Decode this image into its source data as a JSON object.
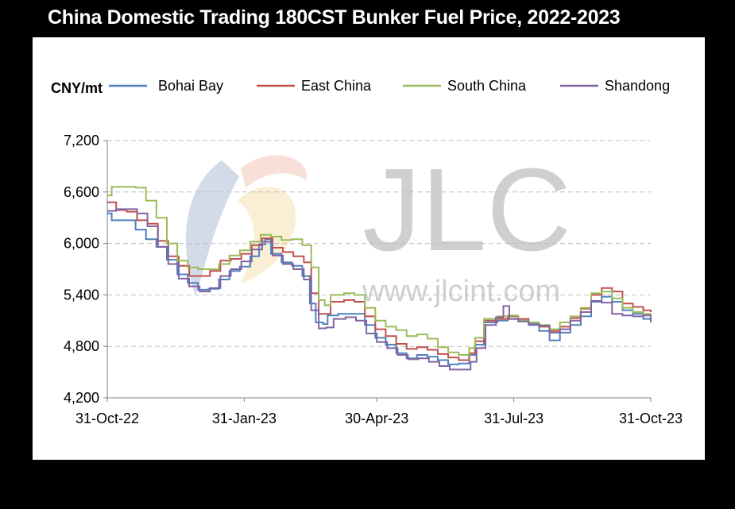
{
  "title": "China Domestic Trading 180CST Bunker Fuel Price, 2022-2023",
  "watermark": {
    "logo_text": "JLC",
    "url_text": "www.jlcint.com",
    "color": "#c8c8c8"
  },
  "chart_data": {
    "type": "line",
    "unit_label": "CNY/mt",
    "x_ticks": [
      "31-Oct-22",
      "31-Jan-23",
      "30-Apr-23",
      "31-Jul-23",
      "31-Oct-23"
    ],
    "x_start": "2022-10-31",
    "x_end": "2023-10-31",
    "y_ticks": [
      "4,200",
      "4,800",
      "5,400",
      "6,000",
      "6,600",
      "7,200"
    ],
    "ylim": [
      4200,
      7200
    ],
    "grid": "horizontal dashed",
    "legend_position": "top",
    "series": [
      {
        "name": "Bohai Bay",
        "color": "#4f81bd",
        "points": [
          [
            "2022-10-31",
            6350
          ],
          [
            "2022-11-03",
            6270
          ],
          [
            "2022-11-12",
            6270
          ],
          [
            "2022-11-19",
            6160
          ],
          [
            "2022-11-26",
            6050
          ],
          [
            "2022-12-03",
            5960
          ],
          [
            "2022-12-10",
            5810
          ],
          [
            "2022-12-17",
            5640
          ],
          [
            "2022-12-24",
            5540
          ],
          [
            "2022-12-31",
            5460
          ],
          [
            "2023-01-07",
            5470
          ],
          [
            "2023-01-14",
            5580
          ],
          [
            "2023-01-21",
            5680
          ],
          [
            "2023-01-28",
            5730
          ],
          [
            "2023-02-04",
            5850
          ],
          [
            "2023-02-10",
            5990
          ],
          [
            "2023-02-14",
            6050
          ],
          [
            "2023-02-18",
            5880
          ],
          [
            "2023-02-25",
            5780
          ],
          [
            "2023-03-04",
            5740
          ],
          [
            "2023-03-11",
            5620
          ],
          [
            "2023-03-16",
            5300
          ],
          [
            "2023-03-20",
            5080
          ],
          [
            "2023-03-25",
            5060
          ],
          [
            "2023-03-28",
            5160
          ],
          [
            "2023-04-04",
            5180
          ],
          [
            "2023-04-15",
            5180
          ],
          [
            "2023-04-22",
            5050
          ],
          [
            "2023-04-29",
            4900
          ],
          [
            "2023-05-06",
            4820
          ],
          [
            "2023-05-13",
            4720
          ],
          [
            "2023-05-20",
            4660
          ],
          [
            "2023-05-27",
            4700
          ],
          [
            "2023-06-03",
            4680
          ],
          [
            "2023-06-10",
            4640
          ],
          [
            "2023-06-17",
            4590
          ],
          [
            "2023-06-24",
            4600
          ],
          [
            "2023-07-01",
            4700
          ],
          [
            "2023-07-05",
            4820
          ],
          [
            "2023-07-11",
            5080
          ],
          [
            "2023-07-20",
            5100
          ],
          [
            "2023-07-27",
            5120
          ],
          [
            "2023-08-03",
            5100
          ],
          [
            "2023-08-10",
            5050
          ],
          [
            "2023-08-17",
            4980
          ],
          [
            "2023-08-24",
            4870
          ],
          [
            "2023-08-31",
            4960
          ],
          [
            "2023-09-07",
            5050
          ],
          [
            "2023-09-14",
            5150
          ],
          [
            "2023-09-21",
            5320
          ],
          [
            "2023-09-28",
            5380
          ],
          [
            "2023-10-05",
            5320
          ],
          [
            "2023-10-12",
            5220
          ],
          [
            "2023-10-19",
            5180
          ],
          [
            "2023-10-26",
            5120
          ],
          [
            "2023-10-31",
            5080
          ]
        ]
      },
      {
        "name": "East China",
        "color": "#c0504d",
        "points": [
          [
            "2022-10-31",
            6480
          ],
          [
            "2022-11-06",
            6390
          ],
          [
            "2022-11-13",
            6370
          ],
          [
            "2022-11-20",
            6270
          ],
          [
            "2022-11-27",
            6230
          ],
          [
            "2022-12-04",
            6030
          ],
          [
            "2022-12-11",
            5850
          ],
          [
            "2022-12-18",
            5740
          ],
          [
            "2022-12-25",
            5620
          ],
          [
            "2023-01-01",
            5620
          ],
          [
            "2023-01-08",
            5680
          ],
          [
            "2023-01-15",
            5800
          ],
          [
            "2023-01-22",
            5820
          ],
          [
            "2023-01-29",
            5880
          ],
          [
            "2023-02-05",
            5980
          ],
          [
            "2023-02-12",
            6060
          ],
          [
            "2023-02-19",
            5950
          ],
          [
            "2023-02-26",
            5900
          ],
          [
            "2023-03-05",
            5850
          ],
          [
            "2023-03-12",
            5780
          ],
          [
            "2023-03-17",
            5420
          ],
          [
            "2023-03-22",
            5180
          ],
          [
            "2023-03-26",
            5180
          ],
          [
            "2023-03-30",
            5320
          ],
          [
            "2023-04-08",
            5340
          ],
          [
            "2023-04-15",
            5320
          ],
          [
            "2023-04-22",
            5150
          ],
          [
            "2023-04-29",
            5000
          ],
          [
            "2023-05-06",
            4920
          ],
          [
            "2023-05-13",
            4830
          ],
          [
            "2023-05-20",
            4770
          ],
          [
            "2023-05-27",
            4790
          ],
          [
            "2023-06-03",
            4760
          ],
          [
            "2023-06-10",
            4710
          ],
          [
            "2023-06-17",
            4670
          ],
          [
            "2023-06-24",
            4640
          ],
          [
            "2023-07-01",
            4720
          ],
          [
            "2023-07-05",
            4860
          ],
          [
            "2023-07-11",
            5100
          ],
          [
            "2023-07-20",
            5120
          ],
          [
            "2023-07-27",
            5150
          ],
          [
            "2023-08-03",
            5120
          ],
          [
            "2023-08-10",
            5080
          ],
          [
            "2023-08-17",
            5030
          ],
          [
            "2023-08-24",
            4980
          ],
          [
            "2023-08-31",
            5030
          ],
          [
            "2023-09-07",
            5130
          ],
          [
            "2023-09-14",
            5240
          ],
          [
            "2023-09-21",
            5400
          ],
          [
            "2023-09-28",
            5480
          ],
          [
            "2023-10-05",
            5440
          ],
          [
            "2023-10-12",
            5300
          ],
          [
            "2023-10-19",
            5260
          ],
          [
            "2023-10-26",
            5220
          ],
          [
            "2023-10-31",
            5200
          ]
        ]
      },
      {
        "name": "South China",
        "color": "#9bbb59",
        "points": [
          [
            "2022-10-31",
            6560
          ],
          [
            "2022-11-03",
            6660
          ],
          [
            "2022-11-12",
            6660
          ],
          [
            "2022-11-19",
            6650
          ],
          [
            "2022-11-26",
            6500
          ],
          [
            "2022-12-03",
            6300
          ],
          [
            "2022-12-10",
            6000
          ],
          [
            "2022-12-17",
            5800
          ],
          [
            "2022-12-24",
            5720
          ],
          [
            "2022-12-31",
            5700
          ],
          [
            "2023-01-07",
            5700
          ],
          [
            "2023-01-14",
            5760
          ],
          [
            "2023-01-21",
            5860
          ],
          [
            "2023-01-28",
            5920
          ],
          [
            "2023-02-04",
            6020
          ],
          [
            "2023-02-11",
            6100
          ],
          [
            "2023-02-18",
            6080
          ],
          [
            "2023-02-25",
            6040
          ],
          [
            "2023-03-04",
            6050
          ],
          [
            "2023-03-11",
            5980
          ],
          [
            "2023-03-17",
            5720
          ],
          [
            "2023-03-22",
            5340
          ],
          [
            "2023-03-26",
            5280
          ],
          [
            "2023-03-30",
            5400
          ],
          [
            "2023-04-08",
            5420
          ],
          [
            "2023-04-15",
            5400
          ],
          [
            "2023-04-22",
            5250
          ],
          [
            "2023-04-29",
            5100
          ],
          [
            "2023-05-06",
            5030
          ],
          [
            "2023-05-13",
            4990
          ],
          [
            "2023-05-20",
            4920
          ],
          [
            "2023-05-27",
            4940
          ],
          [
            "2023-06-03",
            4890
          ],
          [
            "2023-06-10",
            4790
          ],
          [
            "2023-06-17",
            4730
          ],
          [
            "2023-06-24",
            4700
          ],
          [
            "2023-07-01",
            4780
          ],
          [
            "2023-07-05",
            4900
          ],
          [
            "2023-07-11",
            5120
          ],
          [
            "2023-07-20",
            5150
          ],
          [
            "2023-07-27",
            5160
          ],
          [
            "2023-08-03",
            5100
          ],
          [
            "2023-08-10",
            5080
          ],
          [
            "2023-08-17",
            5050
          ],
          [
            "2023-08-24",
            5000
          ],
          [
            "2023-08-31",
            5080
          ],
          [
            "2023-09-07",
            5150
          ],
          [
            "2023-09-14",
            5250
          ],
          [
            "2023-09-21",
            5420
          ],
          [
            "2023-09-28",
            5440
          ],
          [
            "2023-10-05",
            5360
          ],
          [
            "2023-10-12",
            5250
          ],
          [
            "2023-10-19",
            5200
          ],
          [
            "2023-10-26",
            5180
          ],
          [
            "2023-10-31",
            5150
          ]
        ]
      },
      {
        "name": "Shandong",
        "color": "#8064a2",
        "points": [
          [
            "2022-10-31",
            6380
          ],
          [
            "2022-11-06",
            6400
          ],
          [
            "2022-11-13",
            6400
          ],
          [
            "2022-11-20",
            6350
          ],
          [
            "2022-11-27",
            6200
          ],
          [
            "2022-12-04",
            5960
          ],
          [
            "2022-12-11",
            5760
          ],
          [
            "2022-12-18",
            5590
          ],
          [
            "2022-12-25",
            5500
          ],
          [
            "2023-01-01",
            5440
          ],
          [
            "2023-01-08",
            5480
          ],
          [
            "2023-01-15",
            5620
          ],
          [
            "2023-01-22",
            5700
          ],
          [
            "2023-01-29",
            5790
          ],
          [
            "2023-02-05",
            5930
          ],
          [
            "2023-02-12",
            6020
          ],
          [
            "2023-02-19",
            5860
          ],
          [
            "2023-02-26",
            5760
          ],
          [
            "2023-03-05",
            5700
          ],
          [
            "2023-03-12",
            5580
          ],
          [
            "2023-03-17",
            5220
          ],
          [
            "2023-03-22",
            5010
          ],
          [
            "2023-03-27",
            5020
          ],
          [
            "2023-04-01",
            5120
          ],
          [
            "2023-04-09",
            5140
          ],
          [
            "2023-04-16",
            5100
          ],
          [
            "2023-04-23",
            4950
          ],
          [
            "2023-04-30",
            4850
          ],
          [
            "2023-05-07",
            4780
          ],
          [
            "2023-05-14",
            4700
          ],
          [
            "2023-05-21",
            4650
          ],
          [
            "2023-05-28",
            4660
          ],
          [
            "2023-06-04",
            4620
          ],
          [
            "2023-06-11",
            4570
          ],
          [
            "2023-06-18",
            4530
          ],
          [
            "2023-06-25",
            4530
          ],
          [
            "2023-07-02",
            4620
          ],
          [
            "2023-07-06",
            4780
          ],
          [
            "2023-07-12",
            5050
          ],
          [
            "2023-07-19",
            5140
          ],
          [
            "2023-07-24",
            5270
          ],
          [
            "2023-07-28",
            5120
          ],
          [
            "2023-08-03",
            5090
          ],
          [
            "2023-08-10",
            5060
          ],
          [
            "2023-08-17",
            5040
          ],
          [
            "2023-08-24",
            4960
          ],
          [
            "2023-08-31",
            5000
          ],
          [
            "2023-09-07",
            5100
          ],
          [
            "2023-09-14",
            5200
          ],
          [
            "2023-09-21",
            5330
          ],
          [
            "2023-09-28",
            5310
          ],
          [
            "2023-10-05",
            5180
          ],
          [
            "2023-10-12",
            5160
          ],
          [
            "2023-10-19",
            5150
          ],
          [
            "2023-10-26",
            5160
          ],
          [
            "2023-10-31",
            5100
          ]
        ]
      }
    ]
  }
}
